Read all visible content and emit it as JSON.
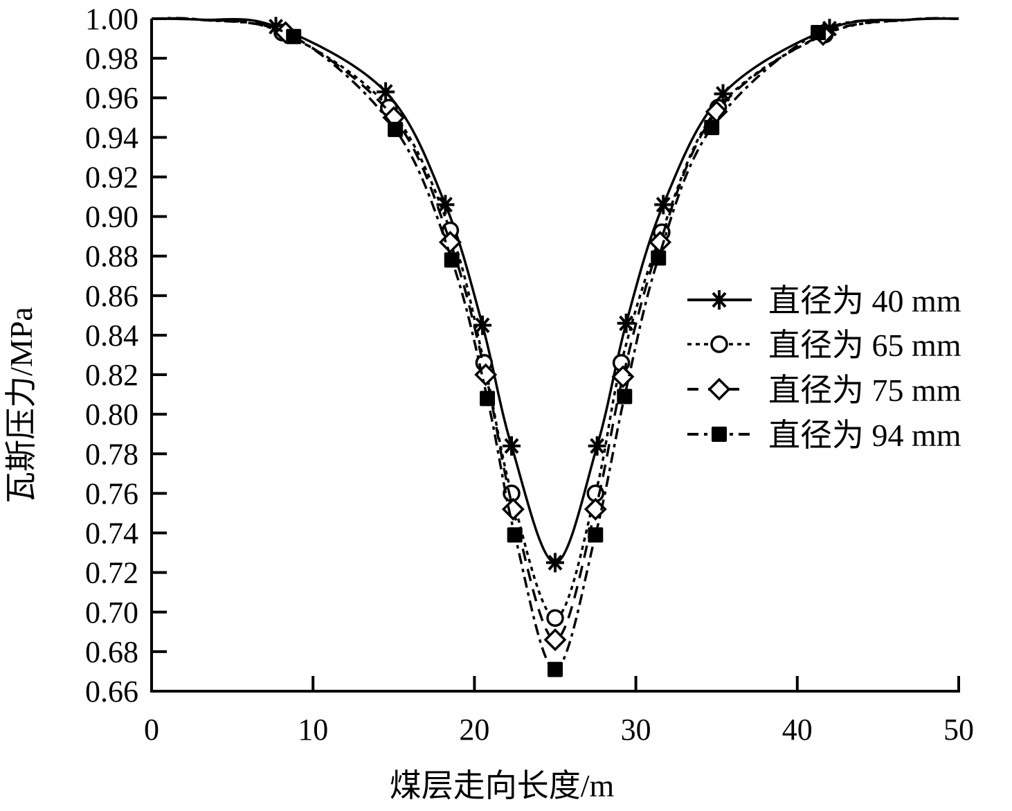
{
  "chart_data": {
    "type": "line",
    "title": "",
    "xlabel": "煤层走向长度/m",
    "ylabel": "瓦斯压力/MPa",
    "xlim": [
      0,
      50
    ],
    "ylim": [
      0.66,
      1.0
    ],
    "x_ticks": [
      0,
      10,
      20,
      30,
      40,
      50
    ],
    "x_tick_labels": [
      "0",
      "10",
      "20",
      "30",
      "40",
      "50"
    ],
    "y_ticks": [
      0.66,
      0.68,
      0.7,
      0.72,
      0.74,
      0.76,
      0.78,
      0.8,
      0.82,
      0.84,
      0.86,
      0.88,
      0.9,
      0.92,
      0.94,
      0.96,
      0.98,
      1.0
    ],
    "y_tick_labels": [
      "0.66",
      "0.68",
      "0.70",
      "0.72",
      "0.74",
      "0.76",
      "0.78",
      "0.80",
      "0.82",
      "0.84",
      "0.86",
      "0.88",
      "0.90",
      "0.92",
      "0.94",
      "0.96",
      "0.98",
      "1.00"
    ],
    "grid": false,
    "legend_position": "right-middle",
    "series": [
      {
        "name": "直径为 40 mm",
        "marker": "asterisk",
        "line_style": "solid",
        "min_value": 0.725,
        "x": [
          7.7,
          14.5,
          18.2,
          20.5,
          22.3,
          25.0,
          27.6,
          29.4,
          31.7,
          35.4,
          42.0
        ],
        "values": [
          0.996,
          0.963,
          0.906,
          0.845,
          0.784,
          0.725,
          0.784,
          0.846,
          0.906,
          0.962,
          0.995
        ]
      },
      {
        "name": "直径为 65 mm",
        "marker": "open-circle",
        "line_style": "dotted",
        "min_value": 0.697,
        "x": [
          8.1,
          14.7,
          18.5,
          20.6,
          22.3,
          25.0,
          27.5,
          29.1,
          31.6,
          35.1,
          41.7
        ],
        "values": [
          0.993,
          0.955,
          0.893,
          0.826,
          0.76,
          0.697,
          0.76,
          0.826,
          0.892,
          0.955,
          0.992
        ]
      },
      {
        "name": "直径为 75 mm",
        "marker": "open-diamond",
        "line_style": "long-dash",
        "min_value": 0.686,
        "x": [
          8.3,
          15.0,
          18.5,
          20.7,
          22.4,
          25.0,
          27.5,
          29.2,
          31.5,
          35.0,
          41.6
        ],
        "values": [
          0.993,
          0.95,
          0.887,
          0.82,
          0.752,
          0.686,
          0.752,
          0.819,
          0.887,
          0.953,
          0.992
        ]
      },
      {
        "name": "直径为 94 mm",
        "marker": "filled-square",
        "line_style": "dash-dot",
        "min_value": 0.671,
        "x": [
          8.8,
          15.1,
          18.6,
          20.8,
          22.5,
          25.0,
          27.5,
          29.3,
          31.4,
          34.7,
          41.3
        ],
        "values": [
          0.991,
          0.944,
          0.878,
          0.808,
          0.739,
          0.671,
          0.739,
          0.809,
          0.879,
          0.945,
          0.993
        ]
      }
    ]
  },
  "legend": {
    "items": [
      {
        "label": "直径为 40 mm",
        "marker": "asterisk-icon"
      },
      {
        "label": "直径为 65 mm",
        "marker": "circle-icon"
      },
      {
        "label": "直径为 75 mm",
        "marker": "diamond-icon"
      },
      {
        "label": "直径为 94 mm",
        "marker": "square-icon"
      }
    ]
  },
  "colors": {
    "ink": "#000000",
    "background": "#ffffff"
  }
}
